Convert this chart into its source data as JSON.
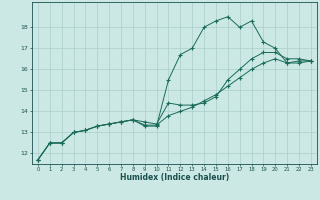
{
  "xlabel": "Humidex (Indice chaleur)",
  "bg_color": "#cce8e4",
  "grid_color": "#aacfcc",
  "line_color": "#1a6b5a",
  "xlim": [
    -0.5,
    23.5
  ],
  "ylim": [
    11.5,
    19.2
  ],
  "yticks": [
    12,
    13,
    14,
    15,
    16,
    17,
    18
  ],
  "xticks": [
    0,
    1,
    2,
    3,
    4,
    5,
    6,
    7,
    8,
    9,
    10,
    11,
    12,
    13,
    14,
    15,
    16,
    17,
    18,
    19,
    20,
    21,
    22,
    23
  ],
  "line1_x": [
    0,
    1,
    2,
    3,
    4,
    5,
    6,
    7,
    8,
    9,
    10,
    11,
    12,
    13,
    14,
    15,
    16,
    17,
    18,
    19,
    20,
    21,
    22,
    23
  ],
  "line1_y": [
    11.7,
    12.5,
    12.5,
    13.0,
    13.1,
    13.3,
    13.4,
    13.5,
    13.6,
    13.3,
    13.3,
    15.5,
    16.7,
    17.0,
    18.0,
    18.3,
    18.5,
    18.0,
    18.3,
    17.3,
    17.0,
    16.3,
    16.4,
    16.4
  ],
  "line2_x": [
    0,
    1,
    2,
    3,
    4,
    5,
    6,
    7,
    8,
    9,
    10,
    11,
    12,
    13,
    14,
    15,
    16,
    17,
    18,
    19,
    20,
    21,
    22,
    23
  ],
  "line2_y": [
    11.7,
    12.5,
    12.5,
    13.0,
    13.1,
    13.3,
    13.4,
    13.5,
    13.6,
    13.5,
    13.4,
    14.4,
    14.3,
    14.3,
    14.4,
    14.7,
    15.5,
    16.0,
    16.5,
    16.8,
    16.8,
    16.5,
    16.5,
    16.4
  ],
  "line3_x": [
    0,
    1,
    2,
    3,
    4,
    5,
    6,
    7,
    8,
    9,
    10,
    11,
    12,
    13,
    14,
    15,
    16,
    17,
    18,
    19,
    20,
    21,
    22,
    23
  ],
  "line3_y": [
    11.7,
    12.5,
    12.5,
    13.0,
    13.1,
    13.3,
    13.4,
    13.5,
    13.6,
    13.35,
    13.35,
    13.8,
    14.0,
    14.2,
    14.5,
    14.8,
    15.2,
    15.6,
    16.0,
    16.3,
    16.5,
    16.3,
    16.3,
    16.4
  ]
}
